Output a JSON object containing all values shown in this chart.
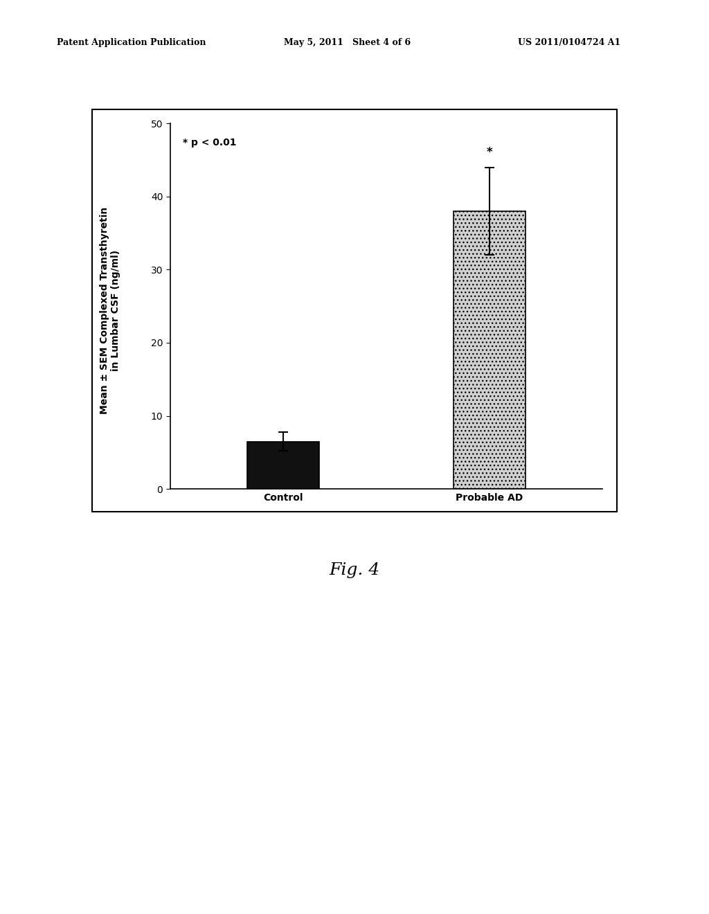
{
  "categories": [
    "Control",
    "Probable AD"
  ],
  "values": [
    6.5,
    38.0
  ],
  "errors": [
    1.3,
    6.0
  ],
  "bar_colors": [
    "#111111",
    "#d0d0d0"
  ],
  "bar_edgecolors": [
    "#000000",
    "#000000"
  ],
  "ylim": [
    0,
    50
  ],
  "yticks": [
    0,
    10,
    20,
    30,
    40,
    50
  ],
  "ylabel": "Mean ± SEM Complexed Transthyretin\nin Lumbar CSF (ng/ml)",
  "annotation_text": "* p < 0.01",
  "star_ad": "*",
  "background_color": "#ffffff",
  "fig_caption": "Fig. 4",
  "header_left": "Patent Application Publication",
  "header_mid": "May 5, 2011   Sheet 4 of 6",
  "header_right": "US 2011/0104724 A1",
  "axis_fontsize": 10,
  "tick_fontsize": 10,
  "caption_fontsize": 18,
  "annot_fontsize": 10
}
